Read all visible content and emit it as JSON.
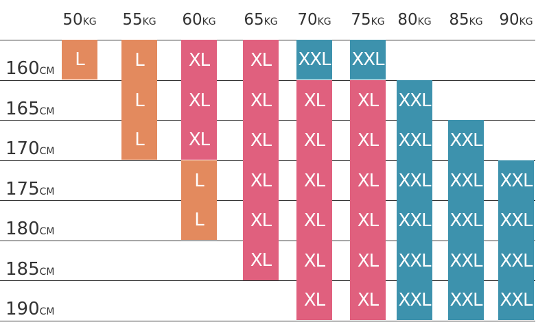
{
  "weight_unit": "KG",
  "height_unit": "CM",
  "weights": [
    "50",
    "55",
    "60",
    "65",
    "70",
    "75",
    "80",
    "85",
    "90"
  ],
  "heights": [
    "160",
    "165",
    "170",
    "175",
    "180",
    "185",
    "190"
  ],
  "colors": {
    "L": "#e38a5e",
    "XL": "#e0607e",
    "XXL": "#3d92ad"
  },
  "grid": [
    [
      "L",
      "L",
      "XL",
      "XL",
      "XXL",
      "XXL",
      "",
      "",
      ""
    ],
    [
      "",
      "L",
      "XL",
      "XL",
      "XL",
      "XL",
      "XXL",
      "",
      ""
    ],
    [
      "",
      "L",
      "XL",
      "XL",
      "XL",
      "XL",
      "XXL",
      "XXL",
      ""
    ],
    [
      "",
      "",
      "L",
      "XL",
      "XL",
      "XL",
      "XXL",
      "XXL",
      "XXL"
    ],
    [
      "",
      "",
      "L",
      "XL",
      "XL",
      "XL",
      "XXL",
      "XXL",
      "XXL"
    ],
    [
      "",
      "",
      "",
      "XL",
      "XL",
      "XL",
      "XXL",
      "XXL",
      "XXL"
    ],
    [
      "",
      "",
      "",
      "",
      "XL",
      "XL",
      "XXL",
      "XXL",
      "XXL"
    ]
  ]
}
